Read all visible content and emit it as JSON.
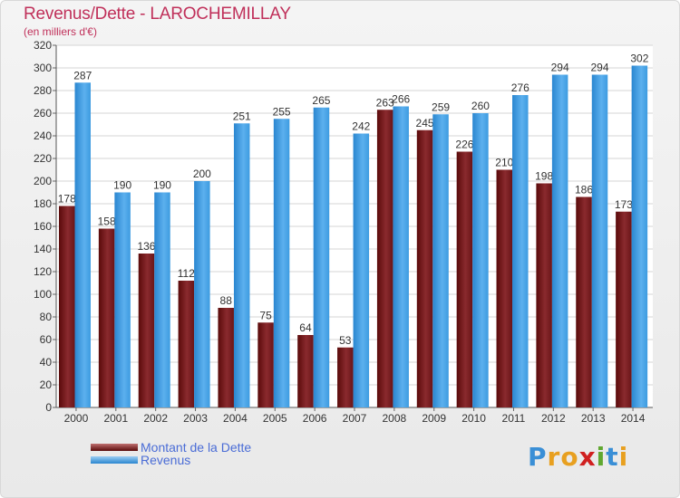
{
  "chart_data": {
    "type": "bar",
    "title": "Revenus/Dette - LAROCHEMILLAY",
    "subtitle": "(en milliers d'€)",
    "categories": [
      "2000",
      "2001",
      "2002",
      "2003",
      "2004",
      "2005",
      "2006",
      "2007",
      "2008",
      "2009",
      "2010",
      "2011",
      "2012",
      "2013",
      "2014"
    ],
    "series": [
      {
        "name": "Montant de la Dette",
        "color": "#7a1e22",
        "values": [
          178,
          158,
          136,
          112,
          88,
          75,
          64,
          53,
          263,
          245,
          226,
          210,
          198,
          186,
          173
        ]
      },
      {
        "name": "Revenus",
        "color": "#4da6e8",
        "values": [
          287,
          190,
          190,
          200,
          251,
          255,
          265,
          242,
          266,
          259,
          260,
          276,
          294,
          294,
          302
        ]
      }
    ],
    "ylim": [
      0,
      320
    ],
    "yticks": [
      0,
      20,
      40,
      60,
      80,
      100,
      120,
      140,
      160,
      180,
      200,
      220,
      240,
      260,
      280,
      300,
      320
    ],
    "grid": true,
    "legend_position": "bottom-left"
  },
  "brand": {
    "letters": [
      "P",
      "r",
      "o",
      "x",
      "i",
      "t",
      "i"
    ],
    "colors": [
      "#3a8fd6",
      "#e8a020",
      "#e8a020",
      "#d02020",
      "#60a830",
      "#3a8fd6",
      "#e8a020"
    ]
  }
}
